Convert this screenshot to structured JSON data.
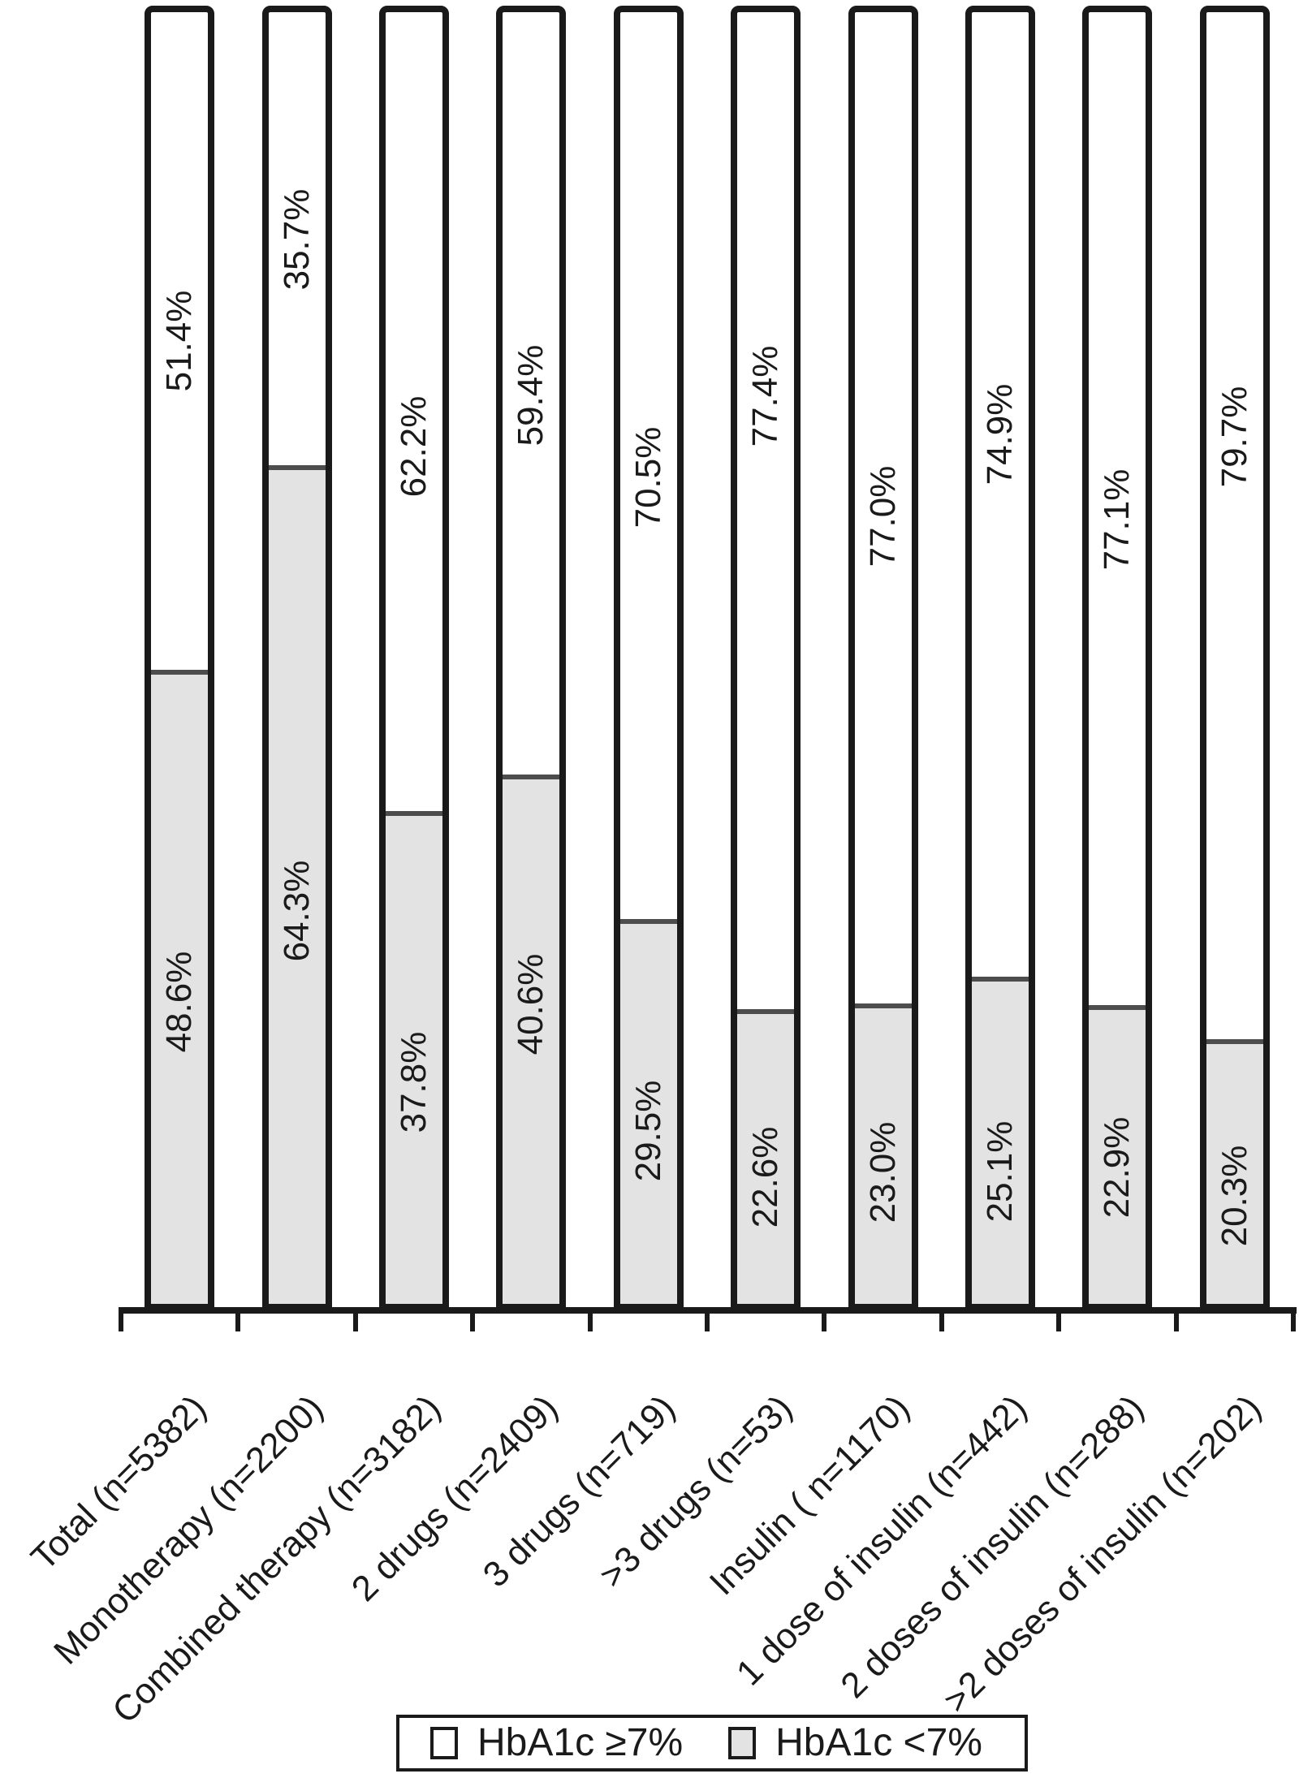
{
  "chart_data": {
    "type": "bar",
    "variant": "stacked-100",
    "orientation": "vertical",
    "title": "",
    "xlabel": "",
    "ylabel": "",
    "ylim": [
      0,
      100
    ],
    "grid": false,
    "axis_shown": "x-only",
    "legend_position": "bottom",
    "categories": [
      "Total (n=5382)",
      "Monotherapy (n=2200)",
      "Combined therapy (n=3182)",
      "2 drugs (n=2409)",
      "3 drugs (n=719)",
      ">3 drugs (n=53)",
      "Insulin ( n=1170)",
      "1 dose of insulin (n=442)",
      "2 doses of insulin (n=288)",
      ">2 doses of insulin (n=202)"
    ],
    "series": [
      {
        "name": "HbA1c ≥7%",
        "color": "#ffffff",
        "values": [
          51.4,
          35.7,
          62.2,
          59.4,
          70.5,
          77.4,
          77.0,
          74.9,
          77.1,
          79.7
        ],
        "labels": [
          "51.4%",
          "35.7%",
          "62.2%",
          "59.4%",
          "70.5%",
          "77.4%",
          "77.0%",
          "74.9%",
          "77.1%",
          "79.7%"
        ]
      },
      {
        "name": "HbA1c <7%",
        "color": "#e3e3e3",
        "values": [
          48.6,
          64.3,
          37.8,
          40.6,
          29.5,
          22.6,
          23.0,
          25.1,
          22.9,
          20.3
        ],
        "labels": [
          "48.6%",
          "64.3%",
          "37.8%",
          "40.6%",
          "29.5%",
          "22.6%",
          "23.0%",
          "25.1%",
          "22.9%",
          "20.3%"
        ]
      }
    ],
    "colors": {
      "outline": "#1a1a1a",
      "segment_divider": "#4d4d4d",
      "background": "#ffffff"
    }
  },
  "legend": {
    "items": [
      {
        "label": "HbA1c ≥7%",
        "swatch": "#ffffff"
      },
      {
        "label": "HbA1c <7%",
        "swatch": "#e3e3e3"
      }
    ]
  }
}
